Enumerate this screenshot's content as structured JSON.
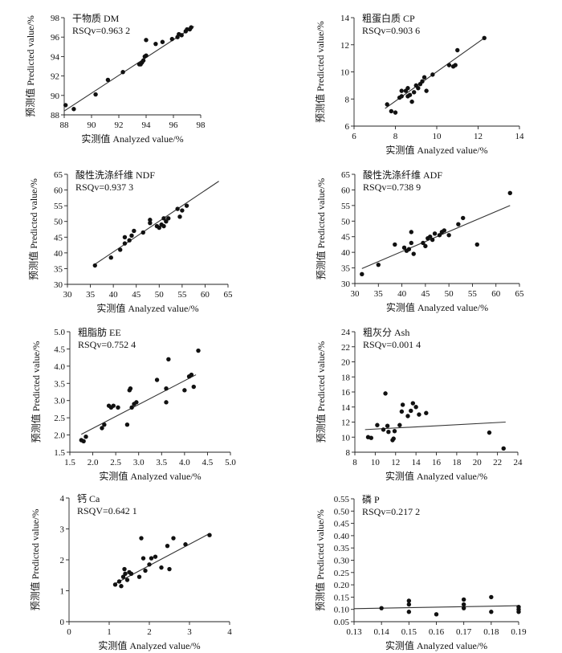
{
  "chart_data": [
    {
      "type": "scatter",
      "title": "干物质  DM",
      "annotation": "RSQv=0.963 2",
      "xlabel": "实测值  Analyzed value/%",
      "ylabel": "预测值  Predicted value/%",
      "xlim": [
        88,
        98
      ],
      "ylim": [
        88,
        98
      ],
      "x_ticks": [
        "88",
        "90",
        "92",
        "94",
        "96",
        "98"
      ],
      "y_ticks": [
        "88",
        "90",
        "92",
        "94",
        "96",
        "98"
      ],
      "fit_line": [
        [
          88,
          88.4
        ],
        [
          97.5,
          97.1
        ]
      ],
      "points": [
        [
          88.1,
          89.0
        ],
        [
          88.7,
          88.6
        ],
        [
          90.3,
          90.1
        ],
        [
          91.2,
          91.6
        ],
        [
          92.3,
          92.4
        ],
        [
          93.5,
          93.2
        ],
        [
          93.6,
          93.2
        ],
        [
          93.7,
          93.4
        ],
        [
          93.8,
          93.6
        ],
        [
          93.9,
          94.0
        ],
        [
          94.0,
          94.1
        ],
        [
          94.0,
          95.7
        ],
        [
          94.7,
          95.3
        ],
        [
          95.2,
          95.5
        ],
        [
          95.9,
          95.8
        ],
        [
          96.3,
          96.0
        ],
        [
          96.4,
          96.3
        ],
        [
          96.6,
          96.2
        ],
        [
          96.9,
          96.6
        ],
        [
          97.0,
          96.8
        ],
        [
          97.2,
          96.8
        ],
        [
          97.3,
          97.0
        ]
      ]
    },
    {
      "type": "scatter",
      "title": "粗蛋白质  CP",
      "annotation": "RSQv=0.903 6",
      "xlabel": "实测值  Analyzed value/%",
      "ylabel": "预测值  Predicted value/%",
      "xlim": [
        6,
        14
      ],
      "ylim": [
        6,
        14
      ],
      "x_ticks": [
        "6",
        "8",
        "10",
        "12",
        "14"
      ],
      "y_ticks": [
        "6",
        "8",
        "10",
        "12",
        "14"
      ],
      "fit_line": [
        [
          7.5,
          7.3
        ],
        [
          12.3,
          12.5
        ]
      ],
      "points": [
        [
          7.6,
          7.6
        ],
        [
          7.8,
          7.1
        ],
        [
          8.0,
          7.0
        ],
        [
          8.2,
          8.1
        ],
        [
          8.3,
          8.2
        ],
        [
          8.3,
          8.6
        ],
        [
          8.5,
          8.6
        ],
        [
          8.6,
          8.8
        ],
        [
          8.6,
          8.2
        ],
        [
          8.7,
          8.3
        ],
        [
          8.8,
          7.8
        ],
        [
          8.9,
          8.5
        ],
        [
          9.0,
          9.0
        ],
        [
          9.1,
          8.8
        ],
        [
          9.2,
          9.1
        ],
        [
          9.3,
          9.3
        ],
        [
          9.4,
          9.6
        ],
        [
          9.5,
          8.6
        ],
        [
          9.8,
          9.8
        ],
        [
          10.6,
          10.5
        ],
        [
          10.8,
          10.4
        ],
        [
          10.9,
          10.5
        ],
        [
          11.0,
          11.6
        ],
        [
          12.3,
          12.5
        ]
      ]
    },
    {
      "type": "scatter",
      "title": "酸性洗涤纤维  NDF",
      "annotation": "RSQv=0.937 3",
      "xlabel": "实测值  Analyzed value/%",
      "ylabel": "预测值  Predicted value/%",
      "xlim": [
        30,
        65
      ],
      "ylim": [
        30,
        65
      ],
      "x_ticks": [
        "30",
        "35",
        "40",
        "45",
        "50",
        "55",
        "60",
        "65"
      ],
      "y_ticks": [
        "30",
        "35",
        "40",
        "45",
        "50",
        "55",
        "60",
        "65"
      ],
      "fit_line": [
        [
          36,
          36.4
        ],
        [
          63,
          62.8
        ]
      ],
      "points": [
        [
          36,
          36
        ],
        [
          39.5,
          38.5
        ],
        [
          41.5,
          41
        ],
        [
          42.5,
          43
        ],
        [
          42.5,
          45
        ],
        [
          43.5,
          44
        ],
        [
          44,
          45.5
        ],
        [
          44.5,
          47
        ],
        [
          46.5,
          46.5
        ],
        [
          48,
          50.5
        ],
        [
          48,
          49.5
        ],
        [
          49.5,
          48.5
        ],
        [
          50,
          48
        ],
        [
          50.5,
          49
        ],
        [
          51,
          51
        ],
        [
          51,
          48.5
        ],
        [
          51.5,
          50
        ],
        [
          52,
          51
        ],
        [
          54,
          54
        ],
        [
          54.5,
          51.5
        ],
        [
          55,
          53.5
        ],
        [
          56,
          55
        ]
      ]
    },
    {
      "type": "scatter",
      "title": "酸性洗涤纤维  ADF",
      "annotation": "RSQv=0.738 9",
      "xlabel": "实测值  Analyzed value/%",
      "ylabel": "预测值  Predicted value/%",
      "xlim": [
        30,
        65
      ],
      "ylim": [
        30,
        65
      ],
      "x_ticks": [
        "30",
        "35",
        "40",
        "45",
        "50",
        "55",
        "60",
        "65"
      ],
      "y_ticks": [
        "30",
        "35",
        "40",
        "45",
        "50",
        "55",
        "60",
        "65"
      ],
      "fit_line": [
        [
          31.5,
          34.8
        ],
        [
          63,
          55
        ]
      ],
      "points": [
        [
          31.5,
          33
        ],
        [
          35,
          36
        ],
        [
          38.5,
          42.5
        ],
        [
          40.5,
          41.5
        ],
        [
          41,
          40.5
        ],
        [
          41.5,
          41
        ],
        [
          42,
          43
        ],
        [
          42,
          46.5
        ],
        [
          42.5,
          39.5
        ],
        [
          44.5,
          43
        ],
        [
          45,
          42
        ],
        [
          45.5,
          44.5
        ],
        [
          46,
          45
        ],
        [
          46.5,
          44
        ],
        [
          47,
          46
        ],
        [
          48,
          45.5
        ],
        [
          48.5,
          46.5
        ],
        [
          49,
          47
        ],
        [
          50,
          45.5
        ],
        [
          52,
          49
        ],
        [
          53,
          51
        ],
        [
          56,
          42.5
        ],
        [
          63,
          59
        ]
      ]
    },
    {
      "type": "scatter",
      "title": "粗脂肪  EE",
      "annotation": "RSQv=0.752 4",
      "xlabel": "实测值  Analyzed value/%",
      "ylabel": "预测值  Predicted value/%",
      "xlim": [
        1.5,
        5.0
      ],
      "ylim": [
        1.5,
        5.0
      ],
      "x_ticks": [
        "1.5",
        "2.0",
        "2.5",
        "3.0",
        "3.5",
        "4.0",
        "4.5",
        "5.0"
      ],
      "y_ticks": [
        "1.5",
        "2.0",
        "2.5",
        "3.0",
        "3.5",
        "4.0",
        "4.5",
        "5.0"
      ],
      "fit_line": [
        [
          1.75,
          2.02
        ],
        [
          4.25,
          3.75
        ]
      ],
      "points": [
        [
          1.75,
          1.85
        ],
        [
          1.8,
          1.82
        ],
        [
          1.85,
          1.95
        ],
        [
          2.2,
          2.2
        ],
        [
          2.25,
          2.3
        ],
        [
          2.35,
          2.85
        ],
        [
          2.4,
          2.8
        ],
        [
          2.45,
          2.85
        ],
        [
          2.55,
          2.8
        ],
        [
          2.75,
          2.3
        ],
        [
          2.8,
          3.3
        ],
        [
          2.82,
          3.35
        ],
        [
          2.85,
          2.8
        ],
        [
          2.9,
          2.9
        ],
        [
          2.95,
          2.95
        ],
        [
          3.4,
          3.6
        ],
        [
          3.6,
          3.35
        ],
        [
          3.6,
          2.95
        ],
        [
          3.65,
          4.2
        ],
        [
          4.0,
          3.3
        ],
        [
          4.1,
          3.7
        ],
        [
          4.15,
          3.75
        ],
        [
          4.2,
          3.4
        ],
        [
          4.3,
          4.45
        ]
      ]
    },
    {
      "type": "scatter",
      "title": "粗灰分  Ash",
      "annotation": "RSQv=0.001 4",
      "xlabel": "实测值  Analyzed value/%",
      "ylabel": "预测值  Predicted value/%",
      "xlim": [
        8,
        24
      ],
      "ylim": [
        8,
        24
      ],
      "x_ticks": [
        "8",
        "10",
        "12",
        "14",
        "16",
        "18",
        "20",
        "22",
        "24"
      ],
      "y_ticks": [
        "8",
        "10",
        "12",
        "14",
        "16",
        "18",
        "20",
        "22",
        "24"
      ],
      "fit_line": [
        [
          9,
          11.0
        ],
        [
          22.8,
          12.0
        ]
      ],
      "points": [
        [
          9.3,
          10.0
        ],
        [
          9.6,
          9.9
        ],
        [
          10.2,
          11.6
        ],
        [
          10.8,
          11.0
        ],
        [
          11.0,
          15.8
        ],
        [
          11.2,
          11.5
        ],
        [
          11.3,
          10.7
        ],
        [
          11.7,
          9.6
        ],
        [
          11.8,
          9.8
        ],
        [
          11.9,
          10.8
        ],
        [
          12.4,
          11.6
        ],
        [
          12.6,
          13.4
        ],
        [
          12.7,
          14.3
        ],
        [
          13.2,
          12.8
        ],
        [
          13.5,
          13.5
        ],
        [
          13.7,
          14.5
        ],
        [
          14.0,
          14.0
        ],
        [
          14.3,
          13.0
        ],
        [
          15.0,
          13.2
        ],
        [
          21.2,
          10.6
        ],
        [
          22.6,
          8.5
        ]
      ]
    },
    {
      "type": "scatter",
      "title": "钙  Ca",
      "annotation": "RSQV=0.642 1",
      "xlabel": "实测值  Analyzed value/%",
      "ylabel": "预测值  Predicted value/%",
      "xlim": [
        0,
        4
      ],
      "ylim": [
        0,
        4
      ],
      "x_ticks": [
        "0",
        "1",
        "2",
        "3",
        "4"
      ],
      "y_ticks": [
        "0",
        "1",
        "2",
        "3",
        "4"
      ],
      "fit_line": [
        [
          1.15,
          1.23
        ],
        [
          3.5,
          2.85
        ]
      ],
      "points": [
        [
          1.15,
          1.2
        ],
        [
          1.25,
          1.3
        ],
        [
          1.3,
          1.15
        ],
        [
          1.35,
          1.45
        ],
        [
          1.38,
          1.7
        ],
        [
          1.4,
          1.55
        ],
        [
          1.45,
          1.35
        ],
        [
          1.5,
          1.6
        ],
        [
          1.55,
          1.55
        ],
        [
          1.75,
          1.45
        ],
        [
          1.8,
          2.7
        ],
        [
          1.85,
          2.05
        ],
        [
          1.9,
          1.65
        ],
        [
          2.0,
          1.85
        ],
        [
          2.05,
          2.05
        ],
        [
          2.15,
          2.1
        ],
        [
          2.3,
          1.75
        ],
        [
          2.45,
          2.45
        ],
        [
          2.5,
          1.7
        ],
        [
          2.6,
          2.7
        ],
        [
          2.9,
          2.5
        ],
        [
          3.5,
          2.8
        ]
      ]
    },
    {
      "type": "scatter",
      "title": "磷  P",
      "annotation": "RSQv=0.217 2",
      "xlabel": "实测值  Analyzed value/%",
      "ylabel": "预测值  Predicted value/%",
      "xlim": [
        0.13,
        0.19
      ],
      "ylim": [
        0.05,
        0.55
      ],
      "x_ticks": [
        "0.13",
        "0.14",
        "0.15",
        "0.16",
        "0.17",
        "0.18",
        "0.19"
      ],
      "y_ticks": [
        "0.05",
        "0.10",
        "0.15",
        "0.20",
        "0.25",
        "0.30",
        "0.35",
        "0.40",
        "0.45",
        "0.50",
        "0.55"
      ],
      "fit_line": [
        [
          0.13,
          0.103
        ],
        [
          0.19,
          0.115
        ]
      ],
      "points": [
        [
          0.14,
          0.105
        ],
        [
          0.15,
          0.09
        ],
        [
          0.15,
          0.12
        ],
        [
          0.15,
          0.135
        ],
        [
          0.16,
          0.08
        ],
        [
          0.17,
          0.105
        ],
        [
          0.17,
          0.12
        ],
        [
          0.17,
          0.14
        ],
        [
          0.18,
          0.09
        ],
        [
          0.18,
          0.15
        ],
        [
          0.19,
          0.09
        ],
        [
          0.19,
          0.1
        ],
        [
          0.19,
          0.11
        ]
      ]
    }
  ]
}
